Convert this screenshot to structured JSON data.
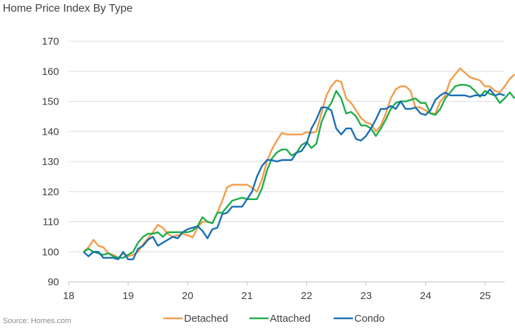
{
  "title": "Home Price Index By Type",
  "source": "Source: Homes.com",
  "chart_data": {
    "type": "line",
    "title": "Home Price Index By Type",
    "xlabel": "",
    "ylabel": "",
    "xlim": [
      18,
      25.33
    ],
    "ylim": [
      90,
      170
    ],
    "x_ticks": [
      18,
      19,
      20,
      21,
      22,
      23,
      24,
      25
    ],
    "x_tick_labels": [
      "18",
      "19",
      "20",
      "21",
      "22",
      "23",
      "24",
      "25"
    ],
    "y_ticks": [
      90,
      100,
      110,
      120,
      130,
      140,
      150,
      160,
      170
    ],
    "y_tick_labels": [
      "90",
      "100",
      "110",
      "120",
      "130",
      "140",
      "150",
      "160",
      "170"
    ],
    "grid": "horizontal",
    "legend_position": "bottom",
    "x_start": 18.25,
    "x_step": 0.0833,
    "series": [
      {
        "name": "Detached",
        "color": "#f39c4a",
        "values": [
          100,
          101.5,
          104,
          102,
          101.5,
          99.5,
          99,
          98,
          99.5,
          98.5,
          99,
          100,
          102.5,
          104.5,
          106.5,
          109,
          108,
          106,
          105,
          105.5,
          106,
          105.5,
          104.8,
          108,
          110,
          110,
          109.5,
          113,
          117,
          121.5,
          122.3,
          122.3,
          122.3,
          122.3,
          121.3,
          120,
          124,
          130,
          134,
          137,
          139.5,
          139,
          139,
          139,
          139,
          139.8,
          139.5,
          140,
          146,
          152,
          155,
          157,
          156.5,
          151,
          149.5,
          147,
          144.5,
          143,
          142.5,
          140,
          142,
          146,
          151,
          154,
          155,
          155,
          153.5,
          148,
          148,
          147,
          146,
          146,
          150,
          152,
          157,
          159,
          161,
          159.5,
          158,
          157.5,
          157,
          155,
          155,
          153.5,
          153,
          155,
          157.5,
          159
        ]
      },
      {
        "name": "Attached",
        "color": "#1fad4a",
        "values": [
          100,
          101,
          100,
          99.5,
          99,
          99.5,
          98.5,
          98,
          98,
          99,
          100,
          103,
          105,
          106,
          106,
          106.5,
          105,
          106.5,
          106.5,
          106.5,
          106.5,
          106.5,
          107,
          108.5,
          111.5,
          110,
          109.5,
          113,
          113,
          115,
          117,
          117.5,
          118,
          117.5,
          117.5,
          117.5,
          121,
          127,
          131,
          133,
          134,
          134,
          132,
          133,
          135.5,
          136.5,
          134.5,
          136,
          143,
          147,
          149.5,
          153.5,
          151,
          146,
          146.5,
          145,
          142,
          142,
          141,
          138.5,
          141,
          144,
          147.5,
          149.5,
          150,
          150,
          150.5,
          151,
          149.5,
          149.5,
          146,
          145.5,
          147.5,
          151,
          153,
          155,
          155.5,
          155.5,
          155,
          153.5,
          151.5,
          153.5,
          152.5,
          152,
          149.5,
          151,
          153,
          151
        ]
      },
      {
        "name": "Condo",
        "color": "#1a6fb5",
        "values": [
          100,
          98.5,
          100,
          100,
          98,
          98,
          98,
          97.5,
          100,
          97.5,
          97.5,
          101,
          102,
          104,
          105,
          102,
          103,
          104,
          105,
          104.5,
          106.5,
          107.5,
          108,
          108.5,
          107,
          104.5,
          107.5,
          108,
          112.5,
          113,
          115,
          115,
          115,
          117.5,
          120,
          125,
          128.5,
          130.5,
          130.5,
          130,
          130.5,
          130.5,
          130.5,
          133,
          133.5,
          136,
          141,
          144,
          148,
          148,
          147,
          141,
          139,
          141,
          141,
          137.5,
          137,
          138.5,
          141,
          144,
          147.5,
          147.5,
          148.5,
          147.5,
          150,
          147.5,
          147.5,
          148,
          146,
          145.5,
          147,
          150.5,
          152,
          153,
          152,
          152,
          152,
          152,
          151.5,
          152,
          152,
          152,
          154,
          152,
          152.5,
          152
        ]
      }
    ]
  }
}
